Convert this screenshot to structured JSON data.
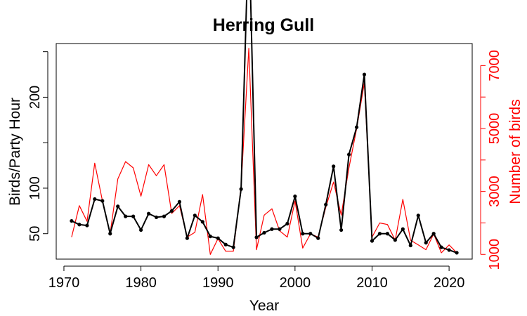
{
  "chart_data": {
    "type": "line",
    "title": "Herring Gull",
    "xlabel": "Year",
    "ylabel": "Birds/Party Hour",
    "ylabel_right": "Number of birds",
    "xlim": [
      1969,
      2023
    ],
    "ylim": [
      22,
      259
    ],
    "ylim_right": [
      850,
      7700
    ],
    "x_ticks": [
      1970,
      1980,
      1990,
      2000,
      2010,
      2020
    ],
    "y_ticks": [
      50,
      100,
      200
    ],
    "y_ticks_unlabeled": [
      150,
      250
    ],
    "y_ticks_right": [
      1000,
      3000,
      5000,
      7000
    ],
    "y_ticks_right_unlabeled": [
      2000,
      4000,
      6000
    ],
    "x": [
      1971,
      1972,
      1973,
      1974,
      1975,
      1976,
      1977,
      1978,
      1979,
      1980,
      1981,
      1982,
      1983,
      1984,
      1985,
      1986,
      1987,
      1988,
      1989,
      1990,
      1991,
      1992,
      1993,
      1994,
      1995,
      1996,
      1997,
      1998,
      1999,
      2000,
      2001,
      2002,
      2003,
      2004,
      2005,
      2006,
      2007,
      2008,
      2009,
      2010,
      2011,
      2012,
      2013,
      2014,
      2015,
      2016,
      2017,
      2018,
      2019,
      2020,
      2021
    ],
    "series": [
      {
        "name": "Birds/Party Hour",
        "color": "#000000",
        "axis": "left",
        "markers": true,
        "values": [
          64,
          60,
          59,
          88,
          86,
          50,
          80,
          69,
          69,
          54,
          72,
          68,
          69,
          75,
          85,
          45,
          70,
          63,
          47,
          45,
          38,
          35,
          99,
          390,
          46,
          51,
          55,
          55,
          61,
          91,
          50,
          50,
          45,
          82,
          124,
          54,
          137,
          167,
          225,
          42,
          50,
          50,
          43,
          55,
          37,
          70,
          40,
          50,
          35,
          32,
          29
        ]
      },
      {
        "name": "Number of birds",
        "color": "#ff0000",
        "axis": "right",
        "markers": false,
        "values": [
          1550,
          2550,
          2050,
          3900,
          2700,
          1650,
          3400,
          3950,
          3750,
          2850,
          3850,
          3500,
          3850,
          2300,
          2550,
          1550,
          1700,
          2900,
          1000,
          1500,
          1100,
          1100,
          3150,
          7550,
          1150,
          2250,
          2450,
          1750,
          1550,
          2700,
          1200,
          1650,
          1550,
          2500,
          3300,
          2250,
          3750,
          5000,
          6450,
          1550,
          2000,
          1950,
          1450,
          2750,
          1450,
          1300,
          1150,
          1650,
          1050,
          1300,
          1050
        ]
      }
    ]
  }
}
